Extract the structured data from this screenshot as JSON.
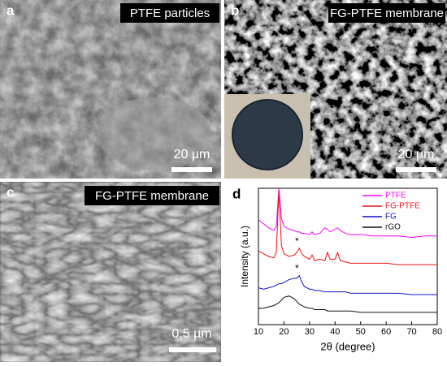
{
  "panels": [
    {
      "letter": "a",
      "title": "PTFE particles",
      "scale_bar": "20 µm"
    },
    {
      "letter": "b",
      "title": "FG-PTFE membrane",
      "scale_bar": "20 µm"
    },
    {
      "letter": "c",
      "title": "FG-PTFE membrane",
      "scale_bar": "0.5 µm"
    }
  ],
  "chart_data": {
    "type": "line",
    "panel_label": "d",
    "x_label": "2θ (degree)",
    "y_label": "Intensity (a.u.)",
    "x": [
      10,
      12,
      14,
      16,
      17,
      18,
      19,
      20,
      22,
      24,
      25,
      26,
      27,
      28,
      30,
      31,
      32,
      34,
      36,
      37,
      38,
      40,
      41,
      42,
      44,
      46,
      50,
      55,
      60,
      65,
      70,
      75,
      80
    ],
    "xlim": [
      10,
      80
    ],
    "xticks": [
      10,
      20,
      30,
      40,
      50,
      60,
      70,
      80
    ],
    "ylim": [
      0,
      100
    ],
    "legend": "upper right",
    "series": [
      {
        "name": "PTFE",
        "color": "#ff00ff",
        "values": [
          77,
          74,
          71,
          69,
          72,
          100,
          78,
          72,
          70,
          69,
          68,
          68,
          67,
          67,
          66,
          68,
          66,
          67,
          71,
          70,
          68,
          70,
          71,
          69,
          67,
          66,
          66,
          65,
          65,
          65,
          64,
          65,
          65
        ]
      },
      {
        "name": "FG-PTFE",
        "color": "#ee1111",
        "values": [
          54,
          52,
          50,
          49,
          53,
          98,
          58,
          52,
          50,
          51,
          53,
          56,
          52,
          50,
          48,
          51,
          47,
          48,
          47,
          53,
          48,
          48,
          53,
          47,
          46,
          45,
          45,
          45,
          45,
          44,
          44,
          44,
          44
        ],
        "annotations": [
          {
            "text": "*",
            "x": 26
          }
        ]
      },
      {
        "name": "FG",
        "color": "#1111cc",
        "values": [
          27,
          26,
          27,
          28,
          29,
          30,
          30,
          31,
          33,
          34,
          34,
          36,
          31,
          28,
          26,
          26,
          25,
          25,
          24,
          24,
          24,
          24,
          24,
          24,
          24,
          23,
          23,
          23,
          23,
          23,
          22,
          22,
          22
        ],
        "annotations": [
          {
            "text": "*",
            "x": 26
          }
        ]
      },
      {
        "name": "rGO",
        "color": "#111111",
        "values": [
          12,
          12,
          13,
          14,
          15,
          16,
          18,
          20,
          21,
          19,
          17,
          15,
          14,
          13,
          12,
          12,
          11,
          11,
          11,
          10,
          10,
          10,
          10,
          10,
          10,
          10,
          9,
          9,
          9,
          9,
          9,
          9,
          9
        ]
      }
    ]
  }
}
